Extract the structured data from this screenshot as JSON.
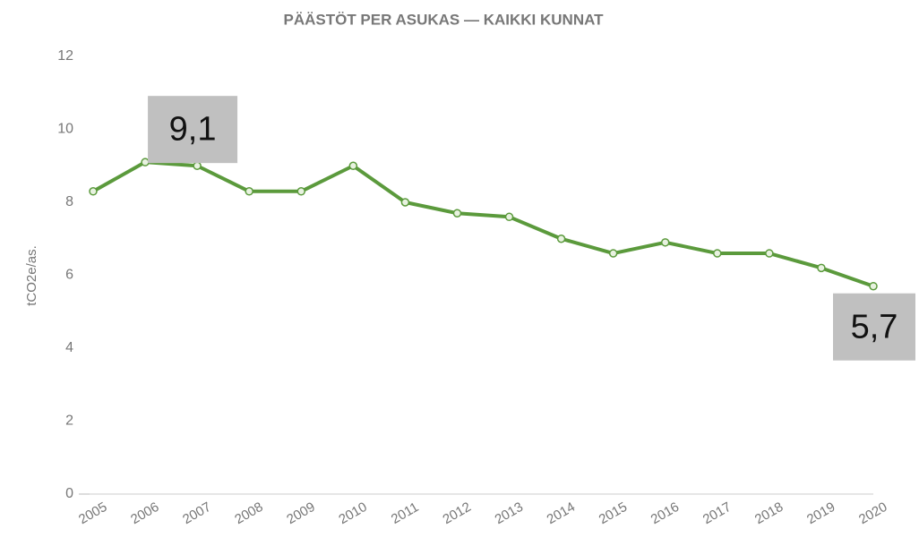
{
  "chart_data": {
    "type": "line",
    "title": "PÄÄSTÖT PER ASUKAS — KAIKKI KUNNAT",
    "y_label": "tCO2e/as.",
    "categories": [
      "2005",
      "2006",
      "2007",
      "2008",
      "2009",
      "2010",
      "2011",
      "2012",
      "2013",
      "2014",
      "2015",
      "2016",
      "2017",
      "2018",
      "2019",
      "2020"
    ],
    "series": [
      {
        "color": "#5b9a3c",
        "values": [
          8.3,
          9.1,
          9.0,
          8.3,
          8.3,
          9.0,
          8.0,
          7.7,
          7.6,
          7.0,
          6.6,
          6.9,
          6.6,
          6.6,
          6.2,
          5.7
        ],
        "value_labels": [
          null,
          "9,1",
          null,
          null,
          null,
          null,
          null,
          null,
          null,
          null,
          null,
          null,
          null,
          null,
          null,
          "5,7"
        ]
      }
    ],
    "ylim": [
      0,
      12
    ],
    "yticks": [
      0,
      2,
      4,
      6,
      8,
      10,
      12
    ],
    "grid": false
  }
}
